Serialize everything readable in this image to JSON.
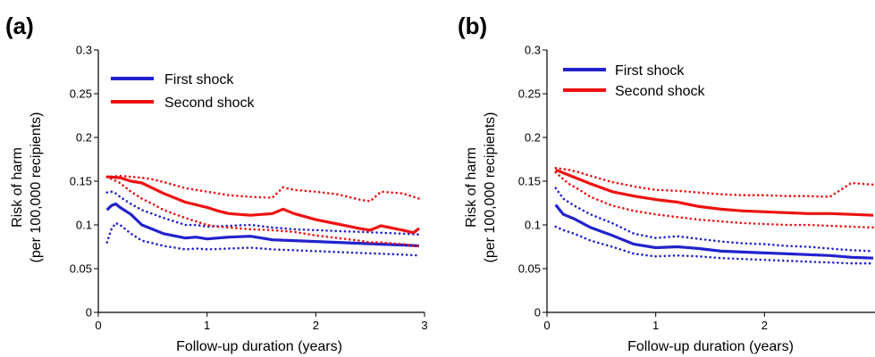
{
  "chart_data": [
    {
      "type": "line",
      "panel_label": "(a)",
      "xlabel": "Follow-up duration (years)",
      "ylabel_line1": "Risk of harm",
      "ylabel_line2": "(per 100,000 recipients)",
      "xlim": [
        0,
        3
      ],
      "ylim": [
        0,
        0.3
      ],
      "xticks": [
        0,
        1,
        2,
        3
      ],
      "xtick_labels": [
        "0",
        "1",
        "2",
        "3"
      ],
      "yticks": [
        0,
        0.05,
        0.1,
        0.15,
        0.2,
        0.25,
        0.3
      ],
      "ytick_labels": [
        "0",
        "0.05",
        "0.1",
        "0.15",
        "0.2",
        "0.25",
        "0.3"
      ],
      "grid": false,
      "legend_position": "top-left",
      "series": [
        {
          "name": "First shock",
          "color": "#2222cc",
          "x": [
            0.08,
            0.12,
            0.16,
            0.2,
            0.3,
            0.4,
            0.6,
            0.8,
            0.9,
            1.0,
            1.2,
            1.4,
            1.6,
            1.8,
            2.0,
            2.2,
            2.4,
            2.6,
            2.8,
            2.95
          ],
          "y": [
            0.117,
            0.122,
            0.124,
            0.12,
            0.112,
            0.1,
            0.09,
            0.085,
            0.086,
            0.084,
            0.086,
            0.087,
            0.083,
            0.082,
            0.081,
            0.08,
            0.079,
            0.078,
            0.077,
            0.076
          ],
          "lower": [
            0.08,
            0.095,
            0.102,
            0.1,
            0.09,
            0.082,
            0.076,
            0.072,
            0.073,
            0.072,
            0.073,
            0.074,
            0.072,
            0.071,
            0.07,
            0.069,
            0.068,
            0.067,
            0.066,
            0.065
          ],
          "upper": [
            0.137,
            0.138,
            0.136,
            0.132,
            0.124,
            0.117,
            0.108,
            0.1,
            0.1,
            0.098,
            0.099,
            0.1,
            0.097,
            0.095,
            0.094,
            0.093,
            0.092,
            0.091,
            0.09,
            0.089
          ]
        },
        {
          "name": "Second shock",
          "color": "#ee1111",
          "x": [
            0.08,
            0.2,
            0.3,
            0.4,
            0.5,
            0.6,
            0.8,
            1.0,
            1.1,
            1.2,
            1.4,
            1.6,
            1.7,
            1.8,
            2.0,
            2.2,
            2.4,
            2.5,
            2.6,
            2.8,
            2.9,
            2.95
          ],
          "y": [
            0.155,
            0.154,
            0.15,
            0.148,
            0.142,
            0.136,
            0.126,
            0.12,
            0.116,
            0.113,
            0.111,
            0.113,
            0.118,
            0.113,
            0.106,
            0.101,
            0.096,
            0.094,
            0.099,
            0.094,
            0.091,
            0.096
          ],
          "lower": [
            0.155,
            0.148,
            0.138,
            0.13,
            0.124,
            0.117,
            0.108,
            0.1,
            0.098,
            0.097,
            0.095,
            0.094,
            0.093,
            0.092,
            0.088,
            0.085,
            0.082,
            0.08,
            0.08,
            0.078,
            0.076,
            0.076
          ],
          "upper": [
            0.155,
            0.156,
            0.155,
            0.154,
            0.152,
            0.149,
            0.142,
            0.138,
            0.136,
            0.134,
            0.132,
            0.131,
            0.143,
            0.14,
            0.138,
            0.135,
            0.129,
            0.127,
            0.138,
            0.136,
            0.132,
            0.13
          ]
        }
      ]
    },
    {
      "type": "line",
      "panel_label": "(b)",
      "xlabel": "Follow-up duration (years)",
      "ylabel_line1": "Risk of harm",
      "ylabel_line2": "(per 100,000 recipients)",
      "xlim": [
        0,
        3
      ],
      "ylim": [
        0,
        0.3
      ],
      "xticks": [
        0,
        1,
        2
      ],
      "xtick_labels": [
        "0",
        "1",
        "2"
      ],
      "yticks": [
        0,
        0.05,
        0.1,
        0.15,
        0.2,
        0.25,
        0.3
      ],
      "ytick_labels": [
        "0",
        "0.05",
        "0.1",
        "0.15",
        "0.2",
        "0.25",
        "0.3"
      ],
      "grid": false,
      "legend_position": "top-left",
      "series": [
        {
          "name": "First shock",
          "color": "#2222cc",
          "x": [
            0.08,
            0.15,
            0.25,
            0.4,
            0.6,
            0.8,
            1.0,
            1.2,
            1.4,
            1.6,
            1.8,
            2.0,
            2.2,
            2.4,
            2.6,
            2.8,
            3.0
          ],
          "y": [
            0.123,
            0.112,
            0.107,
            0.097,
            0.088,
            0.078,
            0.074,
            0.075,
            0.073,
            0.07,
            0.069,
            0.068,
            0.067,
            0.066,
            0.065,
            0.063,
            0.062
          ],
          "lower": [
            0.098,
            0.094,
            0.09,
            0.082,
            0.075,
            0.067,
            0.064,
            0.065,
            0.064,
            0.062,
            0.061,
            0.06,
            0.059,
            0.058,
            0.057,
            0.056,
            0.056
          ],
          "upper": [
            0.142,
            0.13,
            0.122,
            0.112,
            0.102,
            0.09,
            0.085,
            0.087,
            0.084,
            0.081,
            0.079,
            0.078,
            0.076,
            0.075,
            0.073,
            0.071,
            0.07
          ]
        },
        {
          "name": "Second shock",
          "color": "#ee1111",
          "x": [
            0.08,
            0.2,
            0.3,
            0.4,
            0.6,
            0.8,
            1.0,
            1.2,
            1.4,
            1.6,
            1.8,
            2.0,
            2.2,
            2.4,
            2.6,
            2.8,
            3.0
          ],
          "y": [
            0.163,
            0.157,
            0.152,
            0.147,
            0.138,
            0.133,
            0.129,
            0.126,
            0.121,
            0.118,
            0.116,
            0.115,
            0.114,
            0.113,
            0.113,
            0.112,
            0.111
          ],
          "lower": [
            0.16,
            0.147,
            0.14,
            0.132,
            0.122,
            0.116,
            0.112,
            0.109,
            0.106,
            0.104,
            0.102,
            0.101,
            0.1,
            0.1,
            0.099,
            0.098,
            0.097
          ],
          "upper": [
            0.165,
            0.163,
            0.16,
            0.156,
            0.149,
            0.144,
            0.14,
            0.139,
            0.137,
            0.135,
            0.134,
            0.134,
            0.133,
            0.133,
            0.132,
            0.148,
            0.146
          ]
        }
      ]
    }
  ]
}
